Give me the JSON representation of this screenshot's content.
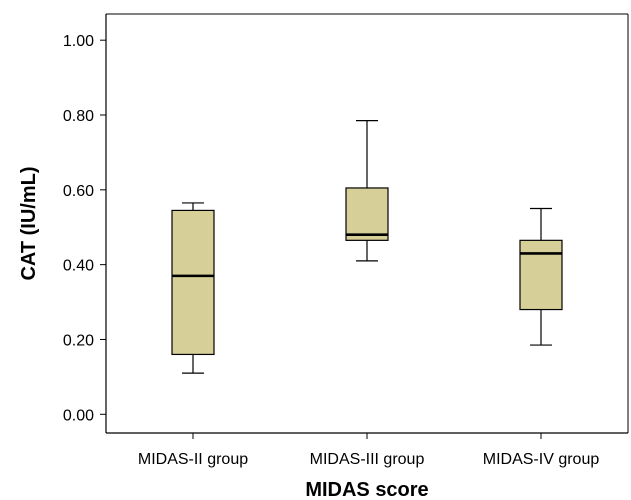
{
  "chart_data": {
    "type": "box",
    "title": "",
    "xlabel": "MIDAS score",
    "ylabel": "CAT (IU/mL)",
    "ylim": [
      -0.05,
      1.07
    ],
    "yticks": [
      "0.00",
      "0.20",
      "0.40",
      "0.60",
      "0.80",
      "1.00"
    ],
    "ytick_values": [
      0.0,
      0.2,
      0.4,
      0.6,
      0.8,
      1.0
    ],
    "categories": [
      "MIDAS-II group",
      "MIDAS-III group",
      "MIDAS-IV group"
    ],
    "boxes": [
      {
        "min": 0.11,
        "q1": 0.16,
        "median": 0.37,
        "q3": 0.545,
        "max": 0.565
      },
      {
        "min": 0.41,
        "q1": 0.465,
        "median": 0.48,
        "q3": 0.605,
        "max": 0.785
      },
      {
        "min": 0.185,
        "q1": 0.28,
        "median": 0.43,
        "q3": 0.465,
        "max": 0.55
      }
    ],
    "box_color": "#d6cf98",
    "grid": false,
    "legend": "none"
  }
}
